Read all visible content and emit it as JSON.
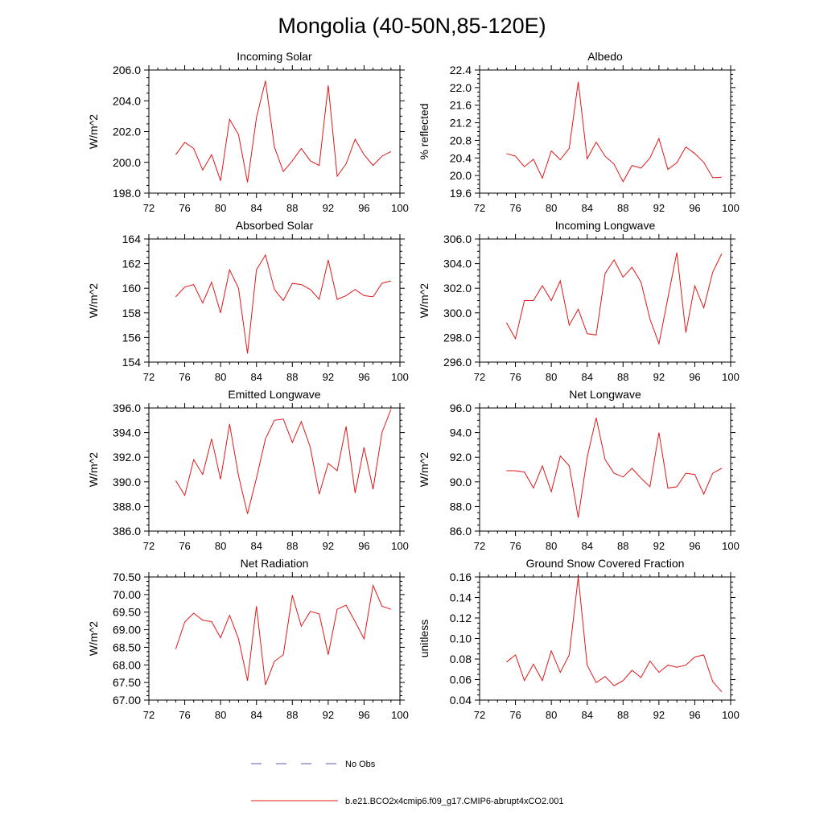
{
  "figure": {
    "title": "Mongolia (40-50N,85-120E)",
    "legend": [
      {
        "label": "No Obs",
        "color": "#5a5ab4",
        "dash": true
      },
      {
        "label": "b.e21.BCO2x4cmip6.f09_g17.CMIP6-abrupt4xCO2.001",
        "color": "#e01818",
        "dash": false
      }
    ],
    "series_color": "#e01818"
  },
  "chart_data": [
    {
      "type": "line",
      "title": "Incoming Solar",
      "ylabel": "W/m^2",
      "xlim": [
        72,
        100
      ],
      "xticks": [
        "72",
        "76",
        "80",
        "84",
        "88",
        "92",
        "96",
        "100"
      ],
      "ylim": [
        198.0,
        206.0
      ],
      "yticks": [
        "198.0",
        "200.0",
        "202.0",
        "204.0",
        "206.0"
      ],
      "x": [
        75,
        76,
        77,
        78,
        79,
        80,
        81,
        82,
        83,
        84,
        85,
        86,
        87,
        88,
        89,
        90,
        91,
        92,
        93,
        94,
        95,
        96,
        97,
        98,
        99
      ],
      "values": [
        200.5,
        201.3,
        200.9,
        199.5,
        200.5,
        198.8,
        202.8,
        201.8,
        198.7,
        202.9,
        205.3,
        201.0,
        199.4,
        200.1,
        200.9,
        200.1,
        199.8,
        205.0,
        199.1,
        199.9,
        201.5,
        200.5,
        199.8,
        200.4,
        200.7
      ]
    },
    {
      "type": "line",
      "title": "Albedo",
      "ylabel": "% reflected",
      "xlim": [
        72,
        100
      ],
      "xticks": [
        "72",
        "76",
        "80",
        "84",
        "88",
        "92",
        "96",
        "100"
      ],
      "ylim": [
        19.6,
        22.4
      ],
      "yticks": [
        "19.6",
        "20.0",
        "20.4",
        "20.8",
        "21.2",
        "21.6",
        "22.0",
        "22.4"
      ],
      "x": [
        75,
        76,
        77,
        78,
        79,
        80,
        81,
        82,
        83,
        84,
        85,
        86,
        87,
        88,
        89,
        90,
        91,
        92,
        93,
        94,
        95,
        96,
        97,
        98,
        99
      ],
      "values": [
        20.5,
        20.44,
        20.2,
        20.37,
        19.94,
        20.56,
        20.36,
        20.62,
        22.13,
        20.38,
        20.76,
        20.44,
        20.26,
        19.86,
        20.23,
        20.17,
        20.4,
        20.84,
        20.14,
        20.29,
        20.65,
        20.5,
        20.3,
        19.95,
        19.96
      ]
    },
    {
      "type": "line",
      "title": "Absorbed Solar",
      "ylabel": "W/m^2",
      "xlim": [
        72,
        100
      ],
      "xticks": [
        "72",
        "76",
        "80",
        "84",
        "88",
        "92",
        "96",
        "100"
      ],
      "ylim": [
        154,
        164
      ],
      "yticks": [
        "154",
        "156",
        "158",
        "160",
        "162",
        "164"
      ],
      "x": [
        75,
        76,
        77,
        78,
        79,
        80,
        81,
        82,
        83,
        84,
        85,
        86,
        87,
        88,
        89,
        90,
        91,
        92,
        93,
        94,
        95,
        96,
        97,
        98,
        99
      ],
      "values": [
        159.3,
        160.1,
        160.3,
        158.8,
        160.5,
        158.0,
        161.5,
        160.0,
        154.7,
        161.5,
        162.7,
        159.9,
        159.0,
        160.4,
        160.3,
        159.9,
        159.1,
        162.3,
        159.1,
        159.4,
        159.9,
        159.4,
        159.3,
        160.4,
        160.6
      ]
    },
    {
      "type": "line",
      "title": "Incoming Longwave",
      "ylabel": "W/m^2",
      "xlim": [
        72,
        100
      ],
      "xticks": [
        "72",
        "76",
        "80",
        "84",
        "88",
        "92",
        "96",
        "100"
      ],
      "ylim": [
        296.0,
        306.0
      ],
      "yticks": [
        "296.0",
        "298.0",
        "300.0",
        "302.0",
        "304.0",
        "306.0"
      ],
      "x": [
        75,
        76,
        77,
        78,
        79,
        80,
        81,
        82,
        83,
        84,
        85,
        86,
        87,
        88,
        89,
        90,
        91,
        92,
        93,
        94,
        95,
        96,
        97,
        98,
        99
      ],
      "values": [
        299.2,
        297.9,
        301.0,
        301.0,
        302.2,
        301.0,
        302.6,
        299.0,
        300.3,
        298.3,
        298.2,
        303.2,
        304.3,
        302.9,
        303.7,
        302.5,
        299.5,
        297.5,
        301.2,
        304.9,
        298.4,
        302.2,
        300.4,
        303.3,
        304.8
      ]
    },
    {
      "type": "line",
      "title": "Emitted Longwave",
      "ylabel": "W/m^2",
      "xlim": [
        72,
        100
      ],
      "xticks": [
        "72",
        "76",
        "80",
        "84",
        "88",
        "92",
        "96",
        "100"
      ],
      "ylim": [
        386.0,
        396.0
      ],
      "yticks": [
        "386.0",
        "388.0",
        "390.0",
        "392.0",
        "394.0",
        "396.0"
      ],
      "x": [
        75,
        76,
        77,
        78,
        79,
        80,
        81,
        82,
        83,
        84,
        85,
        86,
        87,
        88,
        89,
        90,
        91,
        92,
        93,
        94,
        95,
        96,
        97,
        98,
        99
      ],
      "values": [
        390.1,
        388.9,
        391.8,
        390.6,
        393.5,
        390.2,
        394.7,
        390.5,
        387.4,
        390.3,
        393.5,
        395.0,
        395.1,
        393.2,
        394.9,
        392.8,
        389.0,
        391.5,
        390.9,
        394.5,
        389.1,
        392.8,
        389.4,
        394.0,
        395.9
      ]
    },
    {
      "type": "line",
      "title": "Net Longwave",
      "ylabel": "W/m^2",
      "xlim": [
        72,
        100
      ],
      "xticks": [
        "72",
        "76",
        "80",
        "84",
        "88",
        "92",
        "96",
        "100"
      ],
      "ylim": [
        86.0,
        96.0
      ],
      "yticks": [
        "86.0",
        "88.0",
        "90.0",
        "92.0",
        "94.0",
        "96.0"
      ],
      "x": [
        75,
        76,
        77,
        78,
        79,
        80,
        81,
        82,
        83,
        84,
        85,
        86,
        87,
        88,
        89,
        90,
        91,
        92,
        93,
        94,
        95,
        96,
        97,
        98,
        99
      ],
      "values": [
        90.9,
        90.9,
        90.8,
        89.5,
        91.3,
        89.2,
        92.1,
        91.3,
        87.1,
        92.0,
        95.2,
        91.8,
        90.7,
        90.4,
        91.1,
        90.3,
        89.6,
        94.0,
        89.5,
        89.6,
        90.7,
        90.6,
        89.0,
        90.7,
        91.1
      ]
    },
    {
      "type": "line",
      "title": "Net Radiation",
      "ylabel": "W/m^2",
      "xlim": [
        72,
        100
      ],
      "xticks": [
        "72",
        "76",
        "80",
        "84",
        "88",
        "92",
        "96",
        "100"
      ],
      "ylim": [
        67.0,
        70.5
      ],
      "yticks": [
        "67.00",
        "67.50",
        "68.00",
        "68.50",
        "69.00",
        "69.50",
        "70.00",
        "70.50"
      ],
      "x": [
        75,
        76,
        77,
        78,
        79,
        80,
        81,
        82,
        83,
        84,
        85,
        86,
        87,
        88,
        89,
        90,
        91,
        92,
        93,
        94,
        95,
        96,
        97,
        98,
        99
      ],
      "values": [
        68.45,
        69.22,
        69.47,
        69.27,
        69.23,
        68.77,
        69.41,
        68.74,
        67.55,
        69.67,
        67.43,
        68.1,
        68.29,
        69.98,
        69.1,
        69.52,
        69.45,
        68.29,
        69.58,
        69.7,
        69.23,
        68.74,
        70.26,
        69.67,
        69.58
      ]
    },
    {
      "type": "line",
      "title": "Ground Snow Covered Fraction",
      "ylabel": "unitless",
      "xlim": [
        72,
        100
      ],
      "xticks": [
        "72",
        "76",
        "80",
        "84",
        "88",
        "92",
        "96",
        "100"
      ],
      "ylim": [
        0.04,
        0.16
      ],
      "yticks": [
        "0.04",
        "0.06",
        "0.08",
        "0.10",
        "0.12",
        "0.14",
        "0.16"
      ],
      "x": [
        75,
        76,
        77,
        78,
        79,
        80,
        81,
        82,
        83,
        84,
        85,
        86,
        87,
        88,
        89,
        90,
        91,
        92,
        93,
        94,
        95,
        96,
        97,
        98,
        99
      ],
      "values": [
        0.077,
        0.084,
        0.059,
        0.075,
        0.059,
        0.088,
        0.067,
        0.084,
        0.16,
        0.074,
        0.057,
        0.063,
        0.054,
        0.059,
        0.069,
        0.062,
        0.078,
        0.067,
        0.074,
        0.072,
        0.074,
        0.082,
        0.084,
        0.058,
        0.048
      ]
    }
  ]
}
